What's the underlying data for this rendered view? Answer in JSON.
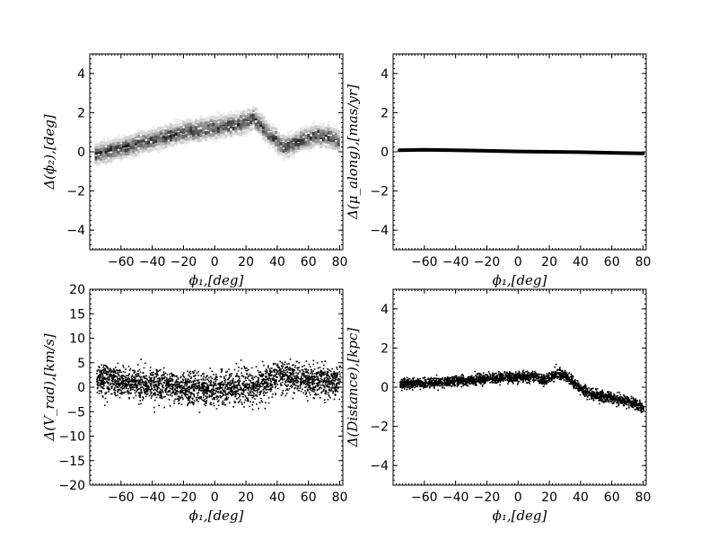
{
  "chart_data": [
    {
      "id": "phi2",
      "type": "scatter",
      "style": "density",
      "xlabel": "ϕ₁,[deg]",
      "ylabel": "Δ(ϕ₂),[deg]",
      "xlim": [
        -80,
        82
      ],
      "ylim": [
        -5,
        5
      ],
      "xticks": [
        -60,
        -40,
        -20,
        0,
        20,
        40,
        60,
        80
      ],
      "yticks": [
        -4,
        -2,
        0,
        2,
        4
      ],
      "trend": [
        [
          -76,
          -0.1
        ],
        [
          -60,
          0.2
        ],
        [
          -40,
          0.6
        ],
        [
          -20,
          1.0
        ],
        [
          0,
          1.25
        ],
        [
          20,
          1.5
        ],
        [
          25,
          1.75
        ],
        [
          35,
          0.9
        ],
        [
          45,
          0.2
        ],
        [
          55,
          0.6
        ],
        [
          65,
          0.85
        ],
        [
          75,
          0.75
        ],
        [
          80,
          0.5
        ]
      ],
      "spread": 0.35
    },
    {
      "id": "mu_along",
      "type": "line",
      "style": "thick",
      "xlabel": "ϕ₁,[deg]",
      "ylabel": "Δ(μ_along),[mas/yr]",
      "xlim": [
        -80,
        82
      ],
      "ylim": [
        -5,
        5
      ],
      "xticks": [
        -60,
        -40,
        -20,
        0,
        20,
        40,
        60,
        80
      ],
      "yticks": [
        -4,
        -2,
        0,
        2,
        4
      ],
      "trend": [
        [
          -76,
          0.08
        ],
        [
          -60,
          0.1
        ],
        [
          -40,
          0.08
        ],
        [
          -20,
          0.05
        ],
        [
          0,
          0.02
        ],
        [
          20,
          0.0
        ],
        [
          40,
          -0.02
        ],
        [
          60,
          -0.05
        ],
        [
          80,
          -0.08
        ]
      ],
      "spread": 0.05
    },
    {
      "id": "v_rad",
      "type": "scatter",
      "style": "points",
      "xlabel": "ϕ₁,[deg]",
      "ylabel": "Δ(V_rad),[km/s]",
      "xlim": [
        -80,
        82
      ],
      "ylim": [
        -20,
        20
      ],
      "xticks": [
        -60,
        -40,
        -20,
        0,
        20,
        40,
        60,
        80
      ],
      "yticks": [
        -20,
        -15,
        -10,
        -5,
        0,
        5,
        10,
        15,
        20
      ],
      "trend": [
        [
          -76,
          2.0
        ],
        [
          -60,
          1.2
        ],
        [
          -40,
          0.5
        ],
        [
          -20,
          -0.2
        ],
        [
          0,
          -0.2
        ],
        [
          20,
          0.0
        ],
        [
          30,
          0.8
        ],
        [
          40,
          2.5
        ],
        [
          60,
          1.5
        ],
        [
          80,
          1.0
        ]
      ],
      "spread": 1.6
    },
    {
      "id": "distance",
      "type": "scatter",
      "style": "points",
      "xlabel": "ϕ₁,[deg]",
      "ylabel": "Δ(Distance),[kpc]",
      "xlim": [
        -80,
        82
      ],
      "ylim": [
        -5,
        5
      ],
      "xticks": [
        -60,
        -40,
        -20,
        0,
        20,
        40,
        60,
        80
      ],
      "yticks": [
        -4,
        -2,
        0,
        2,
        4
      ],
      "trend": [
        [
          -76,
          0.2
        ],
        [
          -60,
          0.25
        ],
        [
          -40,
          0.35
        ],
        [
          -20,
          0.45
        ],
        [
          0,
          0.55
        ],
        [
          10,
          0.6
        ],
        [
          15,
          0.35
        ],
        [
          25,
          0.75
        ],
        [
          30,
          0.6
        ],
        [
          40,
          -0.1
        ],
        [
          50,
          -0.4
        ],
        [
          60,
          -0.5
        ],
        [
          70,
          -0.7
        ],
        [
          80,
          -1.0
        ]
      ],
      "spread": 0.13
    }
  ]
}
